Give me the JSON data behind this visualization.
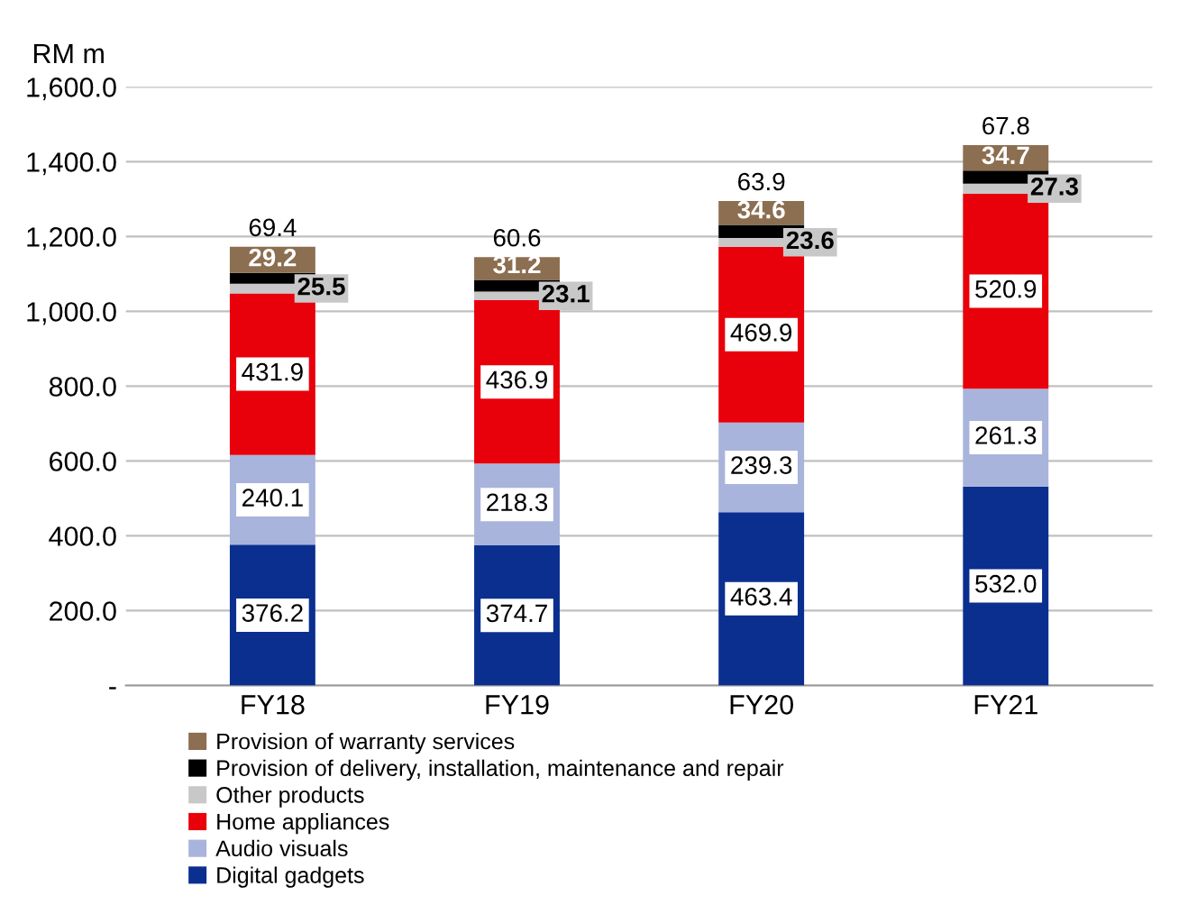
{
  "chart_data": {
    "type": "bar",
    "stacked": true,
    "ylabel": "RM m",
    "categories": [
      "FY18",
      "FY19",
      "FY20",
      "FY21"
    ],
    "series": [
      {
        "name": "Digital gadgets",
        "color": "#0a2f8f",
        "values": [
          376.2,
          374.7,
          463.4,
          532.0
        ],
        "value_labels": [
          "376.2",
          "374.7",
          "463.4",
          "532.0"
        ]
      },
      {
        "name": "Audio visuals",
        "color": "#a9b4dc",
        "values": [
          240.1,
          218.3,
          239.3,
          261.3
        ],
        "value_labels": [
          "240.1",
          "218.3",
          "239.3",
          "261.3"
        ]
      },
      {
        "name": "Home appliances",
        "color": "#e8000b",
        "values": [
          431.9,
          436.9,
          469.9,
          520.9
        ],
        "value_labels": [
          "431.9",
          "436.9",
          "469.9",
          "520.9"
        ]
      },
      {
        "name": "Other products",
        "color": "#c8c8c8",
        "values": [
          25.5,
          23.1,
          23.6,
          27.3
        ],
        "value_labels": [
          "25.5",
          "23.1",
          "23.6",
          "27.3"
        ]
      },
      {
        "name": "Provision of delivery, installation, maintenance and repair",
        "color": "#000000",
        "values": [
          29.2,
          31.2,
          34.6,
          34.7
        ],
        "value_labels": [
          "29.2",
          "31.2",
          "34.6",
          "34.7"
        ]
      },
      {
        "name": "Provision of warranty services",
        "color": "#8c6e50",
        "values": [
          69.4,
          60.6,
          63.9,
          67.8
        ],
        "value_labels": [
          "69.4",
          "60.6",
          "63.9",
          "67.8"
        ]
      }
    ],
    "ylim": [
      0,
      1600
    ],
    "yticks": [
      {
        "value": 0,
        "label": "-"
      },
      {
        "value": 200,
        "label": "200.0"
      },
      {
        "value": 400,
        "label": "400.0"
      },
      {
        "value": 600,
        "label": "600.0"
      },
      {
        "value": 800,
        "label": "800.0"
      },
      {
        "value": 1000,
        "label": "1,000.0"
      },
      {
        "value": 1200,
        "label": "1,200.0"
      },
      {
        "value": 1400,
        "label": "1,400.0"
      },
      {
        "value": 1600,
        "label": "1,600.0"
      }
    ],
    "grid": "y",
    "legend": "bottom"
  }
}
